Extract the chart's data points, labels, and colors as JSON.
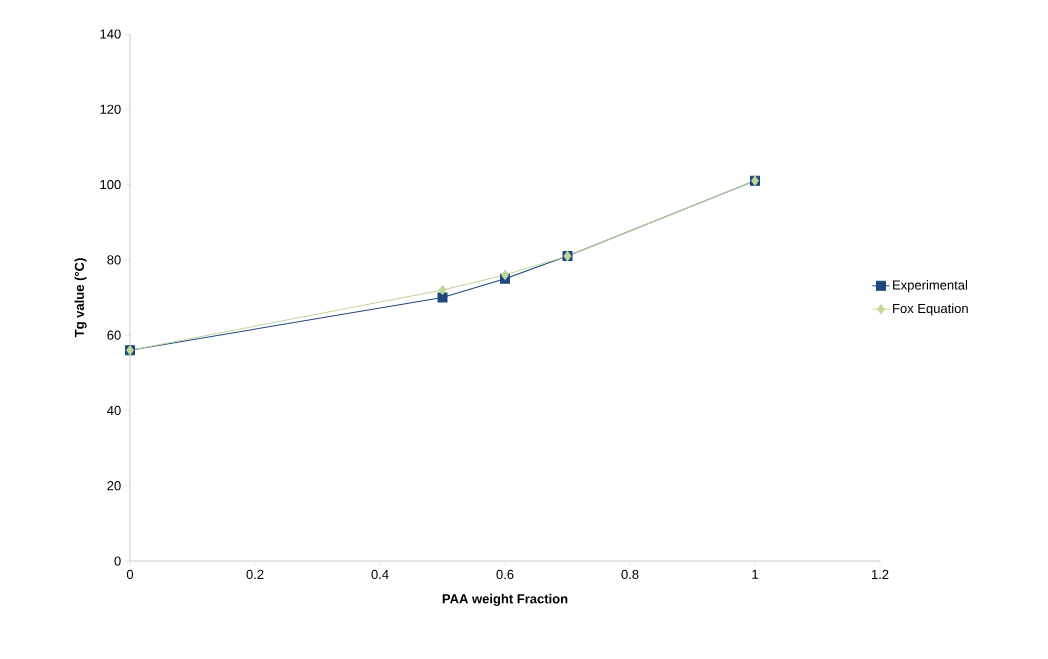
{
  "chart_data": {
    "type": "line",
    "xlabel": "PAA weight Fraction",
    "ylabel": "Tg value (°C)",
    "x": [
      0,
      0.5,
      0.6,
      0.7,
      1
    ],
    "series": [
      {
        "name": "Experimental",
        "color": "#1f497d",
        "marker": "square",
        "values": [
          56,
          70,
          75,
          81,
          101
        ]
      },
      {
        "name": "Fox Equation",
        "color": "#c3d69b",
        "marker": "diamond",
        "values": [
          56,
          72,
          76,
          81,
          101
        ]
      }
    ],
    "xlim": [
      0,
      1.2
    ],
    "xticks": [
      0,
      0.2,
      0.4,
      0.6,
      0.8,
      1,
      1.2
    ],
    "ylim": [
      0,
      140
    ],
    "yticks": [
      0,
      20,
      40,
      60,
      80,
      100,
      120,
      140
    ],
    "grid": false,
    "legend": "right",
    "line_style": "solid"
  }
}
